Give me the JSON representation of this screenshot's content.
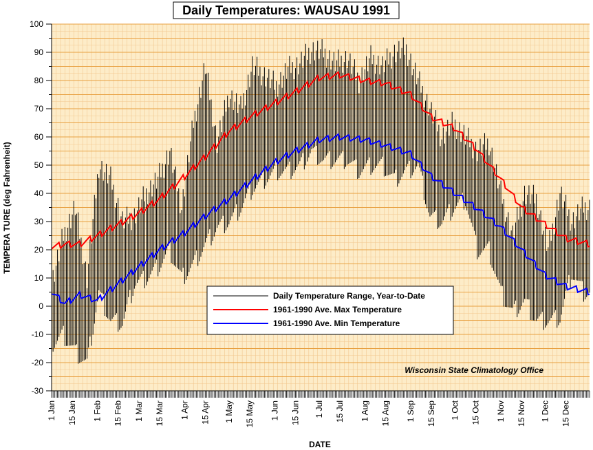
{
  "chart_data": {
    "type": "line",
    "title": "Daily Temperatures: WAUSAU 1991",
    "xlabel": "DATE",
    "ylabel": "TEMPERA TURE (deg Fahrenheit)",
    "ylim": [
      -30,
      100
    ],
    "yticks": [
      "100",
      "90",
      "80",
      "70",
      "60",
      "50",
      "40",
      "30",
      "20",
      "10",
      "0",
      "-10",
      "-20",
      "-30"
    ],
    "xticks": [
      {
        "label": "1 Jan",
        "day": 1
      },
      {
        "label": "15 Jan",
        "day": 15
      },
      {
        "label": "1 Feb",
        "day": 32
      },
      {
        "label": "15 Feb",
        "day": 46
      },
      {
        "label": "1 Mar",
        "day": 60
      },
      {
        "label": "15 Mar",
        "day": 74
      },
      {
        "label": "1 Apr",
        "day": 91
      },
      {
        "label": "15 Apr",
        "day": 105
      },
      {
        "label": "1 May",
        "day": 121
      },
      {
        "label": "15 May",
        "day": 135
      },
      {
        "label": "1 Jun",
        "day": 152
      },
      {
        "label": "15 Jun",
        "day": 166
      },
      {
        "label": "1 Jul",
        "day": 182
      },
      {
        "label": "15 Jul",
        "day": 196
      },
      {
        "label": "1 Aug",
        "day": 213
      },
      {
        "label": "15 Aug",
        "day": 227
      },
      {
        "label": "1 Sep",
        "day": 244
      },
      {
        "label": "15 Sep",
        "day": 258
      },
      {
        "label": "1 Oct",
        "day": 274
      },
      {
        "label": "15 Oct",
        "day": 288
      },
      {
        "label": "1 Nov",
        "day": 305
      },
      {
        "label": "15 Nov",
        "day": 319
      },
      {
        "label": "1 Dec",
        "day": 335
      },
      {
        "label": "15 Dec",
        "day": 349
      }
    ],
    "grid": true,
    "legend_position": "center",
    "annotation": "Wisconsin State Climatology Office",
    "colors": {
      "background": "#fdecc8",
      "grid_major": "#e8a040",
      "grid_minor": "#f2c890",
      "range": "#000000",
      "max": "#ff0000",
      "min": "#0000ff"
    },
    "series": [
      {
        "name": "Daily Temperature Range, Year-to-Date",
        "kind": "range",
        "note": "approximate daily high/low at every 8th day",
        "days": [
          1,
          9,
          17,
          25,
          33,
          41,
          49,
          57,
          65,
          73,
          81,
          89,
          97,
          105,
          113,
          121,
          129,
          137,
          145,
          153,
          161,
          169,
          177,
          185,
          193,
          201,
          209,
          217,
          225,
          233,
          241,
          249,
          257,
          265,
          273,
          281,
          289,
          297,
          305,
          313,
          321,
          329,
          337,
          345,
          353,
          361
        ],
        "high": [
          8,
          25,
          35,
          10,
          50,
          45,
          30,
          32,
          40,
          45,
          55,
          35,
          65,
          85,
          58,
          75,
          70,
          85,
          82,
          78,
          84,
          86,
          91,
          90,
          86,
          88,
          80,
          88,
          85,
          90,
          91,
          80,
          70,
          60,
          65,
          60,
          55,
          58,
          40,
          25,
          40,
          38,
          20,
          40,
          30,
          35
        ],
        "low": [
          -14,
          -10,
          -16,
          -20,
          5,
          -5,
          -6,
          8,
          10,
          14,
          20,
          10,
          15,
          22,
          28,
          30,
          35,
          42,
          45,
          48,
          48,
          50,
          55,
          52,
          52,
          52,
          48,
          50,
          50,
          45,
          48,
          50,
          32,
          30,
          35,
          38,
          20,
          20,
          5,
          -2,
          2,
          -5,
          -5,
          -4,
          12,
          5
        ]
      },
      {
        "name": "1961-1990 Ave. Max Temperature",
        "kind": "line",
        "days": [
          1,
          10,
          20,
          32,
          46,
          60,
          74,
          91,
          105,
          121,
          135,
          152,
          166,
          182,
          196,
          213,
          227,
          244,
          258,
          274,
          288,
          305,
          319,
          335,
          349,
          365
        ],
        "values": [
          21,
          22,
          22,
          25,
          29,
          33,
          38,
          46,
          53,
          62,
          67,
          72,
          76,
          81,
          82,
          80,
          79,
          75,
          67,
          63,
          56,
          45,
          35,
          29,
          24,
          22
        ]
      },
      {
        "name": "1961-1990 Ave. Min Temperature",
        "kind": "line",
        "days": [
          1,
          10,
          20,
          32,
          46,
          60,
          74,
          91,
          105,
          121,
          135,
          152,
          166,
          182,
          196,
          213,
          227,
          244,
          258,
          274,
          288,
          305,
          319,
          335,
          349,
          365
        ],
        "values": [
          5,
          1,
          4,
          2,
          8,
          14,
          20,
          26,
          32,
          38,
          44,
          51,
          55,
          59,
          60,
          59,
          57,
          54,
          46,
          40,
          35,
          28,
          20,
          11,
          7,
          5
        ]
      }
    ]
  }
}
